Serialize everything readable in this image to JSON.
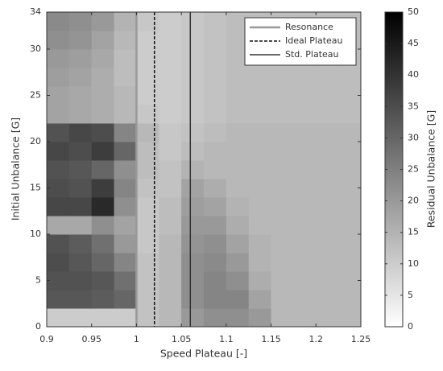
{
  "chart_data": {
    "type": "heatmap",
    "xlabel": "Speed Plateau [-]",
    "ylabel": "Initial Unbalance [G]",
    "colorbar_label": "Residual Unbalance [G]",
    "xlim": [
      0.9,
      1.25
    ],
    "xticks": [
      0.9,
      0.95,
      1,
      1.05,
      1.1,
      1.15,
      1.2,
      1.25
    ],
    "ylim": [
      0,
      34
    ],
    "yticks": [
      0,
      5,
      10,
      15,
      20,
      25,
      30,
      34
    ],
    "clim": [
      0,
      50
    ],
    "cticks": [
      0,
      5,
      10,
      15,
      20,
      25,
      30,
      35,
      40,
      45,
      50
    ],
    "colormap": "gray-reversed",
    "xbins": [
      0.9,
      0.925,
      0.95,
      0.975,
      1.0,
      1.025,
      1.05,
      1.075,
      1.1,
      1.125,
      1.15,
      1.175,
      1.2,
      1.225,
      1.25
    ],
    "ybins": [
      0,
      2,
      4,
      6,
      8,
      10,
      12,
      14,
      16,
      18,
      20,
      22,
      24,
      26,
      28,
      30,
      32,
      34
    ],
    "values": [
      [
        10,
        10,
        10,
        10,
        12,
        14,
        20,
        22,
        22,
        20,
        14,
        14,
        14,
        14
      ],
      [
        33,
        33,
        32,
        30,
        12,
        14,
        22,
        24,
        24,
        18,
        14,
        14,
        14,
        14
      ],
      [
        34,
        34,
        33,
        28,
        12,
        14,
        22,
        24,
        22,
        16,
        14,
        14,
        14,
        14
      ],
      [
        35,
        33,
        30,
        24,
        12,
        14,
        22,
        23,
        20,
        15,
        14,
        14,
        14,
        14
      ],
      [
        34,
        32,
        28,
        20,
        11,
        14,
        21,
        22,
        18,
        15,
        14,
        14,
        14,
        14
      ],
      [
        17,
        17,
        22,
        18,
        11,
        13,
        20,
        20,
        16,
        14,
        14,
        14,
        14,
        14
      ],
      [
        36,
        36,
        42,
        22,
        11,
        13,
        19,
        18,
        15,
        14,
        14,
        14,
        14,
        14
      ],
      [
        35,
        34,
        38,
        24,
        12,
        12,
        18,
        16,
        14,
        14,
        14,
        14,
        14,
        14
      ],
      [
        34,
        33,
        30,
        22,
        13,
        12,
        15,
        14,
        14,
        14,
        14,
        14,
        14,
        14
      ],
      [
        36,
        35,
        38,
        30,
        13,
        11,
        13,
        14,
        14,
        14,
        14,
        14,
        14,
        14
      ],
      [
        34,
        36,
        35,
        24,
        14,
        11,
        12,
        13,
        14,
        14,
        14,
        14,
        14,
        14
      ],
      [
        18,
        17,
        16,
        14,
        11,
        10,
        11,
        12,
        13,
        13,
        13,
        13,
        13,
        13
      ],
      [
        18,
        17,
        16,
        14,
        10,
        10,
        11,
        12,
        13,
        13,
        13,
        13,
        13,
        13
      ],
      [
        19,
        18,
        16,
        13,
        10,
        10,
        11,
        12,
        13,
        13,
        13,
        13,
        13,
        13
      ],
      [
        20,
        19,
        17,
        13,
        10,
        10,
        11,
        12,
        13,
        13,
        13,
        13,
        13,
        13
      ],
      [
        22,
        21,
        18,
        14,
        10,
        10,
        11,
        12,
        13,
        13,
        13,
        13,
        13,
        13
      ],
      [
        23,
        22,
        20,
        15,
        11,
        10,
        11,
        12,
        13,
        13,
        13,
        13,
        13,
        13
      ]
    ],
    "vlines": [
      {
        "name": "Resonance",
        "x": 1,
        "color": "#999999",
        "dash": "solid",
        "width": 2.5
      },
      {
        "name": "Ideal Plateau",
        "x": 1.02,
        "color": "#111111",
        "dash": "dashed",
        "width": 1.5
      },
      {
        "name": "Std. Plateau",
        "x": 1.06,
        "color": "#333333",
        "dash": "solid",
        "width": 1.5
      }
    ],
    "legend": "upper right"
  }
}
